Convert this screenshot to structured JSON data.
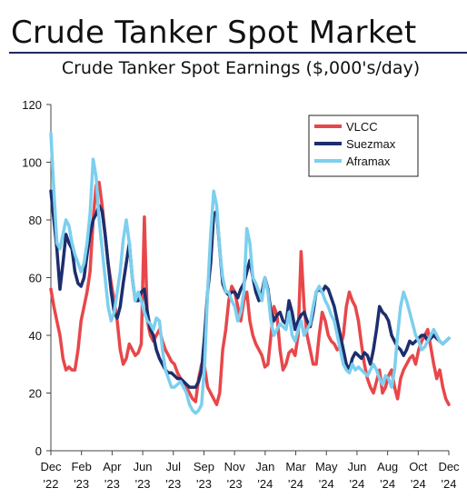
{
  "header": {
    "title": "Crude Tanker Spot Market"
  },
  "chart_data": {
    "type": "line",
    "title": "Crude Tanker Spot Earnings ($,000's/day)",
    "xlabel": "",
    "ylabel": "",
    "ylim": [
      0,
      120
    ],
    "yticks": [
      0,
      20,
      40,
      60,
      80,
      100,
      120
    ],
    "x_tick_labels": [
      {
        "month": "Dec",
        "year": "'22"
      },
      {
        "month": "Feb",
        "year": "'23"
      },
      {
        "month": "Apr",
        "year": "'23"
      },
      {
        "month": "Jun",
        "year": "'23"
      },
      {
        "month": "Jul",
        "year": "'23"
      },
      {
        "month": "Sep",
        "year": "'23"
      },
      {
        "month": "Nov",
        "year": "'23"
      },
      {
        "month": "Jan",
        "year": "'24"
      },
      {
        "month": "Mar",
        "year": "'24"
      },
      {
        "month": "May",
        "year": "'24"
      },
      {
        "month": "Jun",
        "year": "'24"
      },
      {
        "month": "Aug",
        "year": "'24"
      },
      {
        "month": "Oct",
        "year": "'24"
      },
      {
        "month": "Dec",
        "year": "'24"
      }
    ],
    "grid": false,
    "legend_position": "top-right",
    "series": [
      {
        "name": "VLCC",
        "color": "#e8474a",
        "values": [
          56,
          50,
          45,
          40,
          32,
          28,
          29,
          28,
          28,
          35,
          45,
          50,
          55,
          62,
          80,
          92,
          93,
          85,
          75,
          65,
          58,
          52,
          45,
          35,
          30,
          32,
          37,
          35,
          33,
          34,
          37,
          81,
          45,
          40,
          38,
          40,
          42,
          38,
          35,
          33,
          31,
          30,
          27,
          25,
          24,
          22,
          20,
          18,
          17,
          25,
          30,
          29,
          22,
          20,
          18,
          16,
          20,
          35,
          42,
          52,
          57,
          55,
          50,
          45,
          52,
          55,
          45,
          40,
          37,
          35,
          33,
          29,
          30,
          40,
          50,
          47,
          35,
          28,
          30,
          34,
          35,
          33,
          40,
          69,
          50,
          40,
          35,
          30,
          30,
          40,
          48,
          45,
          40,
          38,
          37,
          35,
          36,
          40,
          50,
          55,
          52,
          50,
          45,
          37,
          30,
          25,
          22,
          20,
          24,
          28,
          20,
          22,
          26,
          28,
          22,
          18,
          25,
          28,
          30,
          32,
          33,
          30,
          35,
          38,
          40,
          42,
          36,
          30,
          25,
          28,
          22,
          18,
          16
        ]
      },
      {
        "name": "Suezmax",
        "color": "#1c2e6e",
        "values": [
          90,
          80,
          70,
          56,
          65,
          75,
          72,
          70,
          62,
          58,
          57,
          60,
          68,
          75,
          80,
          82,
          85,
          83,
          75,
          65,
          55,
          48,
          46,
          50,
          58,
          65,
          72,
          60,
          52,
          52,
          55,
          56,
          48,
          42,
          40,
          35,
          32,
          30,
          28,
          27,
          27,
          26,
          25,
          25,
          24,
          23,
          22,
          22,
          22,
          24,
          28,
          40,
          55,
          65,
          82,
          83,
          70,
          58,
          55,
          54,
          55,
          55,
          53,
          56,
          58,
          62,
          66,
          60,
          55,
          52,
          55,
          60,
          56,
          48,
          45,
          47,
          48,
          45,
          44,
          52,
          48,
          42,
          45,
          47,
          48,
          45,
          43,
          48,
          55,
          56,
          55,
          57,
          56,
          53,
          50,
          45,
          40,
          35,
          30,
          28,
          32,
          34,
          33,
          32,
          34,
          33,
          30,
          35,
          42,
          50,
          48,
          47,
          45,
          40,
          38,
          36,
          35,
          33,
          35,
          38,
          37,
          38,
          39,
          40,
          40,
          38,
          39,
          40,
          39,
          38,
          37,
          38,
          39
        ]
      },
      {
        "name": "Aframax",
        "color": "#7ccfee",
        "values": [
          110,
          90,
          72,
          70,
          75,
          80,
          78,
          72,
          68,
          65,
          62,
          65,
          72,
          82,
          101,
          95,
          80,
          70,
          60,
          50,
          45,
          48,
          55,
          62,
          73,
          80,
          72,
          60,
          52,
          55,
          52,
          48,
          45,
          44,
          42,
          46,
          45,
          35,
          28,
          25,
          22,
          22,
          23,
          24,
          22,
          20,
          16,
          14,
          13,
          14,
          16,
          30,
          55,
          75,
          90,
          85,
          70,
          60,
          55,
          55,
          52,
          50,
          45,
          48,
          55,
          77,
          72,
          60,
          58,
          55,
          52,
          60,
          55,
          45,
          40,
          42,
          44,
          43,
          42,
          48,
          40,
          38,
          42,
          45,
          40,
          42,
          44,
          50,
          55,
          57,
          55,
          52,
          50,
          47,
          45,
          40,
          35,
          30,
          28,
          27,
          30,
          28,
          29,
          28,
          27,
          26,
          28,
          30,
          28,
          25,
          23,
          26,
          25,
          22,
          28,
          40,
          50,
          55,
          52,
          48,
          44,
          40,
          38,
          35,
          36,
          38,
          40,
          42,
          40,
          38,
          37,
          38,
          39
        ]
      }
    ]
  }
}
